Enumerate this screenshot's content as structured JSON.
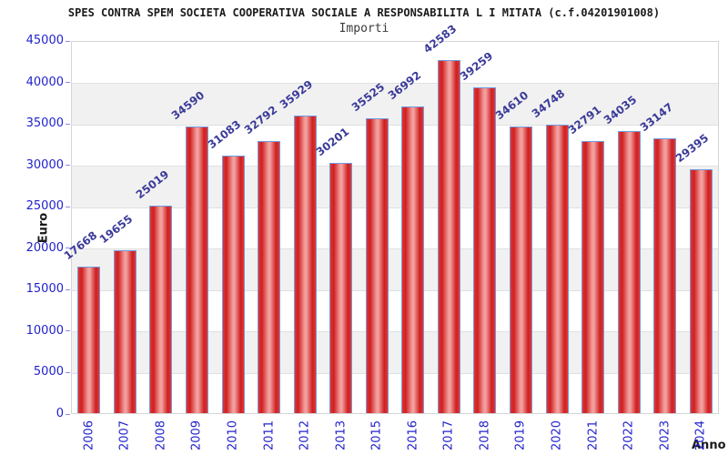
{
  "header": {
    "title": "SPES CONTRA SPEM SOCIETA COOPERATIVA SOCIALE A RESPONSABILITA L I MITATA (c.f.04201901008)",
    "subtitle": "Importi"
  },
  "chart_data": {
    "type": "bar",
    "title": "Importi",
    "categories": [
      "2006",
      "2007",
      "2008",
      "2009",
      "2010",
      "2011",
      "2012",
      "2013",
      "2015",
      "2016",
      "2017",
      "2018",
      "2019",
      "2020",
      "2021",
      "2022",
      "2023",
      "2024"
    ],
    "values": [
      17668,
      19655,
      25019,
      34590,
      31083,
      32792,
      35929,
      30201,
      35525,
      36992,
      42583,
      39259,
      34610,
      34748,
      32791,
      34035,
      33147,
      29395
    ],
    "xlabel": "Anno",
    "ylabel": "Euro",
    "ylim": [
      0,
      45000
    ],
    "ytick_step": 5000,
    "yticks": [
      0,
      5000,
      10000,
      15000,
      20000,
      25000,
      30000,
      35000,
      40000,
      45000
    ],
    "legend": "none",
    "grid": "alternating horizontal bands",
    "colors": {
      "bar_fill": "#e43535",
      "bar_fill_highlight": "#f2a3a2",
      "bar_border": "#6f9be0",
      "tick_label": "#2222cc",
      "value_label": "#3a3a99",
      "band_gray": "#f1f1f1",
      "plot_border": "#d5d5d5",
      "title_text": "#1a1a1a"
    }
  }
}
